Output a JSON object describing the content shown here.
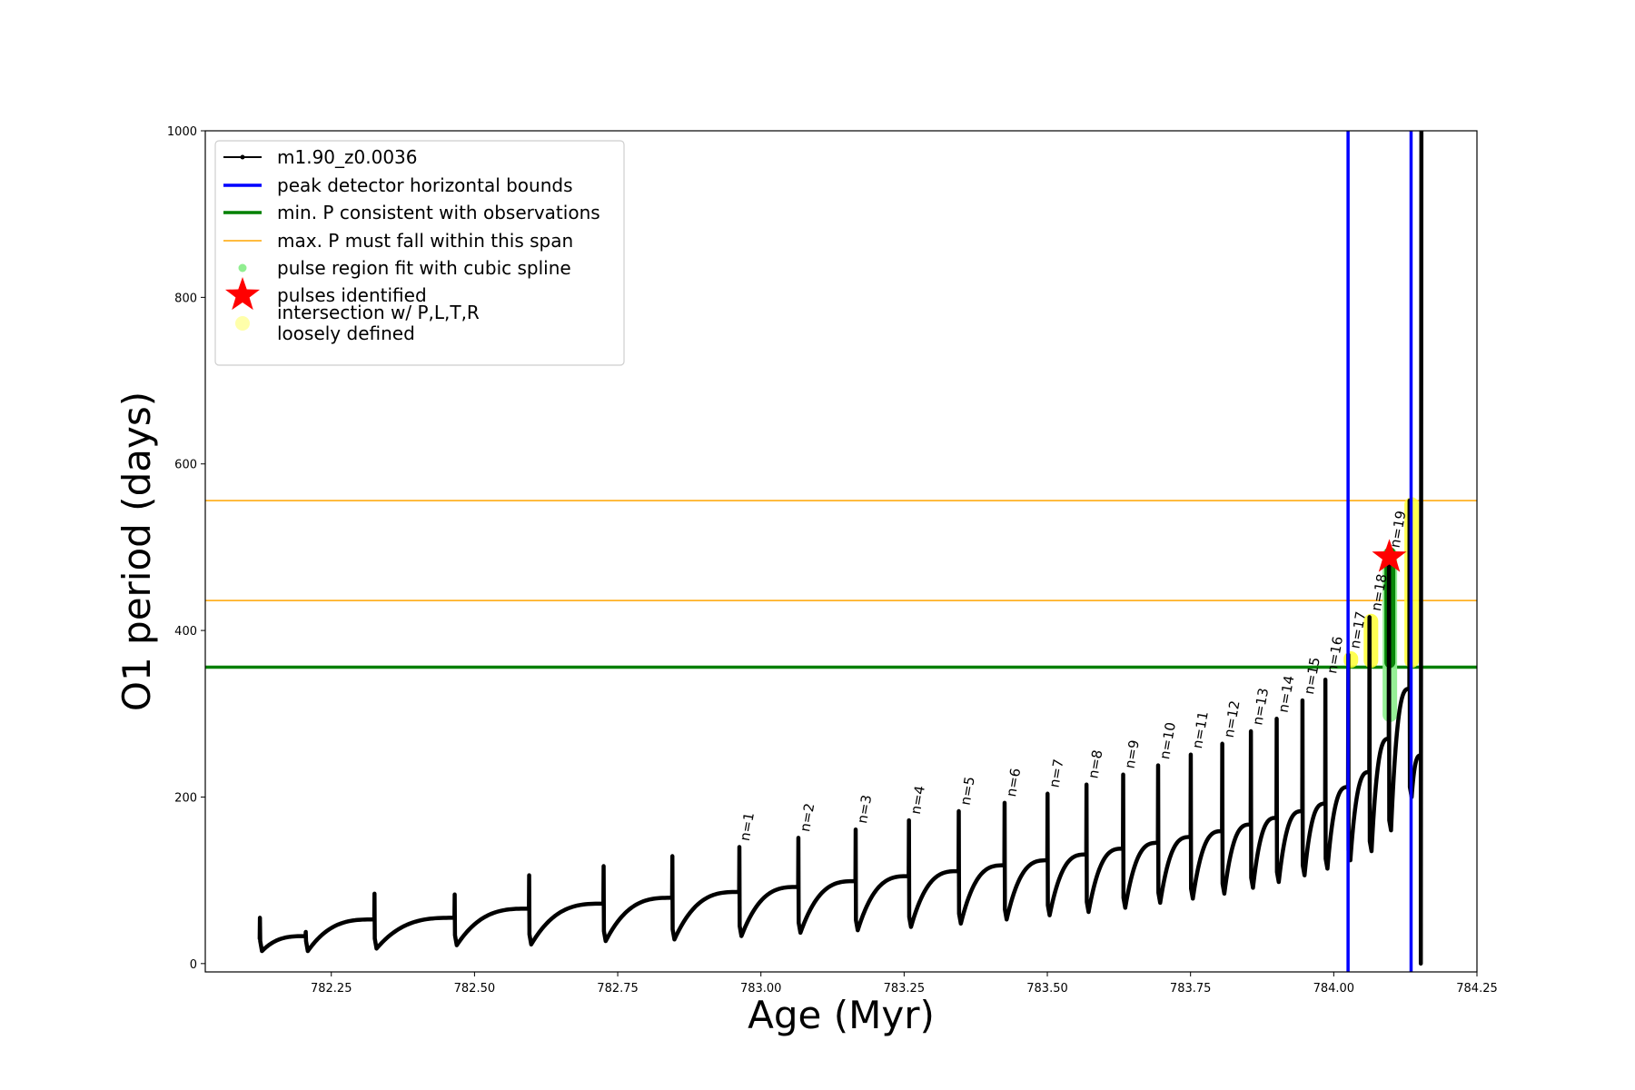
{
  "chart_data": {
    "type": "line",
    "title": "",
    "xlabel": "Age (Myr)",
    "ylabel": "O1 period (days)",
    "xlim": [
      782.03,
      784.25
    ],
    "ylim": [
      -10,
      1000
    ],
    "xticks": [
      782.25,
      782.5,
      782.75,
      783.0,
      783.25,
      783.5,
      783.75,
      784.0,
      784.25
    ],
    "xtick_labels": [
      "782.25",
      "782.50",
      "782.75",
      "783.00",
      "783.25",
      "783.50",
      "783.75",
      "784.00",
      "784.25"
    ],
    "yticks": [
      0,
      200,
      400,
      600,
      800,
      1000
    ],
    "ytick_labels": [
      "0",
      "200",
      "400",
      "600",
      "800",
      "1000"
    ],
    "legend_position": "top-left",
    "legend": [
      {
        "label": "m1.90_z0.0036",
        "kind": "line-marker",
        "color": "#000000"
      },
      {
        "label": "peak detector horizontal bounds",
        "kind": "line",
        "color": "#0000ff"
      },
      {
        "label": "min. P consistent with observations",
        "kind": "line",
        "color": "#008000"
      },
      {
        "label": "max. P must fall within this span",
        "kind": "line",
        "color": "#ffa500"
      },
      {
        "label": "pulse region fit with cubic spline",
        "kind": "dot",
        "color": "#90ee90"
      },
      {
        "label": "pulses identified",
        "kind": "star",
        "color": "#ff0000"
      },
      {
        "label": "intersection w/ P,L,T,R",
        "label2": "loosely defined",
        "kind": "dot",
        "color": "#ffffaa"
      }
    ],
    "hlines": [
      {
        "name": "min-period-line",
        "y": 356,
        "color": "#008000",
        "width": 3.5
      },
      {
        "name": "max-period-lower-line",
        "y": 436,
        "color": "#ffa500",
        "width": 1.5
      },
      {
        "name": "max-period-upper-line",
        "y": 556,
        "color": "#ffa500",
        "width": 1.5
      }
    ],
    "vlines": [
      {
        "name": "peak-bound-left-line",
        "x": 784.025,
        "color": "#0000ff",
        "width": 3.5
      },
      {
        "name": "peak-bound-right-line",
        "x": 784.135,
        "color": "#0000ff",
        "width": 3.5
      }
    ],
    "series": [
      {
        "name": "m1.90_z0.0036",
        "color": "#000000",
        "cycles": [
          {
            "start": 782.125,
            "end": 782.205,
            "base": 30,
            "peak": 55,
            "minv": 15,
            "plateau": 33
          },
          {
            "start": 782.205,
            "end": 782.325,
            "base": 33,
            "peak": 38,
            "minv": 15,
            "plateau": 53
          },
          {
            "start": 782.325,
            "end": 782.465,
            "base": 53,
            "peak": 84,
            "minv": 18,
            "plateau": 55
          },
          {
            "start": 782.465,
            "end": 782.595,
            "base": 55,
            "peak": 83,
            "minv": 22,
            "plateau": 66
          },
          {
            "start": 782.595,
            "end": 782.725,
            "base": 66,
            "peak": 106,
            "minv": 23,
            "plateau": 72
          },
          {
            "start": 782.725,
            "end": 782.845,
            "base": 72,
            "peak": 117,
            "minv": 27,
            "plateau": 79
          },
          {
            "start": 782.845,
            "end": 782.962,
            "base": 79,
            "peak": 129,
            "minv": 29,
            "plateau": 86
          },
          {
            "start": 782.962,
            "end": 783.065,
            "base": 86,
            "peak": 140,
            "minv": 33,
            "plateau": 92
          },
          {
            "start": 783.065,
            "end": 783.165,
            "base": 92,
            "peak": 151,
            "minv": 37,
            "plateau": 99
          },
          {
            "start": 783.165,
            "end": 783.258,
            "base": 99,
            "peak": 161,
            "minv": 40,
            "plateau": 105
          },
          {
            "start": 783.258,
            "end": 783.345,
            "base": 105,
            "peak": 172,
            "minv": 44,
            "plateau": 111
          },
          {
            "start": 783.345,
            "end": 783.425,
            "base": 111,
            "peak": 183,
            "minv": 48,
            "plateau": 118
          },
          {
            "start": 783.425,
            "end": 783.5,
            "base": 118,
            "peak": 193,
            "minv": 53,
            "plateau": 124
          },
          {
            "start": 783.5,
            "end": 783.568,
            "base": 124,
            "peak": 204,
            "minv": 58,
            "plateau": 131
          },
          {
            "start": 783.568,
            "end": 783.632,
            "base": 131,
            "peak": 215,
            "minv": 62,
            "plateau": 138
          },
          {
            "start": 783.632,
            "end": 783.693,
            "base": 138,
            "peak": 227,
            "minv": 67,
            "plateau": 145
          },
          {
            "start": 783.693,
            "end": 783.75,
            "base": 145,
            "peak": 238,
            "minv": 73,
            "plateau": 152
          },
          {
            "start": 783.75,
            "end": 783.805,
            "base": 152,
            "peak": 251,
            "minv": 78,
            "plateau": 159
          },
          {
            "start": 783.805,
            "end": 783.855,
            "base": 159,
            "peak": 264,
            "minv": 84,
            "plateau": 167
          },
          {
            "start": 783.855,
            "end": 783.9,
            "base": 167,
            "peak": 279,
            "minv": 91,
            "plateau": 175
          },
          {
            "start": 783.9,
            "end": 783.945,
            "base": 175,
            "peak": 294,
            "minv": 98,
            "plateau": 183
          },
          {
            "start": 783.945,
            "end": 783.985,
            "base": 183,
            "peak": 316,
            "minv": 106,
            "plateau": 192
          },
          {
            "start": 783.985,
            "end": 784.025,
            "base": 192,
            "peak": 341,
            "minv": 114,
            "plateau": 212
          },
          {
            "start": 784.025,
            "end": 784.062,
            "base": 212,
            "peak": 371,
            "minv": 124,
            "plateau": 230
          },
          {
            "start": 784.062,
            "end": 784.096,
            "base": 230,
            "peak": 416,
            "minv": 135,
            "plateau": 270
          },
          {
            "start": 784.096,
            "end": 784.132,
            "base": 270,
            "peak": 492,
            "minv": 160,
            "plateau": 330
          },
          {
            "start": 784.132,
            "end": 784.152,
            "base": 330,
            "peak": 556,
            "minv": 200,
            "plateau": 250
          }
        ],
        "tail": [
          {
            "x": 784.152,
            "y": 250
          },
          {
            "x": 784.152,
            "y": 0
          },
          {
            "x": 784.153,
            "y": 1000
          }
        ]
      }
    ],
    "pulse_labels": [
      {
        "text": "n=1",
        "x": 782.965,
        "y": 140
      },
      {
        "text": "n=2",
        "x": 783.07,
        "y": 151
      },
      {
        "text": "n=3",
        "x": 783.17,
        "y": 161
      },
      {
        "text": "n=4",
        "x": 783.263,
        "y": 172
      },
      {
        "text": "n=5",
        "x": 783.35,
        "y": 183
      },
      {
        "text": "n=6",
        "x": 783.43,
        "y": 193
      },
      {
        "text": "n=7",
        "x": 783.505,
        "y": 204
      },
      {
        "text": "n=8",
        "x": 783.573,
        "y": 215
      },
      {
        "text": "n=9",
        "x": 783.637,
        "y": 227
      },
      {
        "text": "n=10",
        "x": 783.698,
        "y": 238
      },
      {
        "text": "n=11",
        "x": 783.755,
        "y": 251
      },
      {
        "text": "n=12",
        "x": 783.81,
        "y": 264
      },
      {
        "text": "n=13",
        "x": 783.86,
        "y": 279
      },
      {
        "text": "n=14",
        "x": 783.905,
        "y": 294
      },
      {
        "text": "n=15",
        "x": 783.95,
        "y": 316
      },
      {
        "text": "n=16",
        "x": 783.99,
        "y": 341
      },
      {
        "text": "n=17",
        "x": 784.03,
        "y": 371
      },
      {
        "text": "n=18",
        "x": 784.067,
        "y": 416
      },
      {
        "text": "n=19",
        "x": 784.1,
        "y": 492
      }
    ],
    "spline_regions": [
      {
        "x": 784.03,
        "ymin": 355,
        "ymax": 375,
        "color": "#ffff33"
      },
      {
        "x": 784.065,
        "ymin": 355,
        "ymax": 420,
        "color": "#ffff33"
      },
      {
        "x": 784.098,
        "ymin": 290,
        "ymax": 500,
        "color": "#90ee90"
      },
      {
        "x": 784.098,
        "ymin": 355,
        "ymax": 500,
        "color": "#008000"
      },
      {
        "x": 784.136,
        "ymin": 355,
        "ymax": 560,
        "color": "#ffff33"
      }
    ],
    "pulses_identified": [
      {
        "x": 784.097,
        "y": 488
      }
    ]
  }
}
